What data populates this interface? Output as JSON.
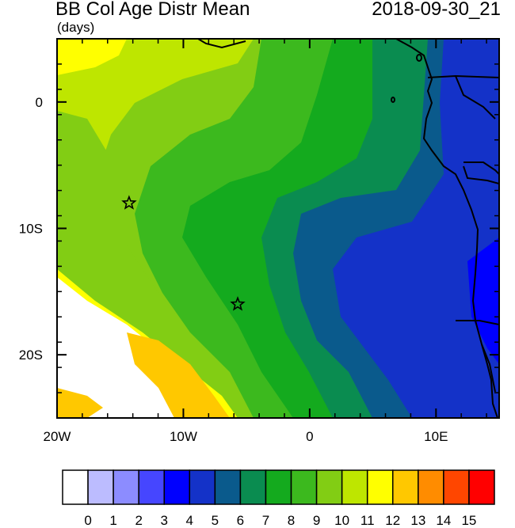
{
  "title": "BB Col Age Distr Mean",
  "units": "(days)",
  "datetime": "2018-09-30_21",
  "map": {
    "lon_range": [
      -20,
      15
    ],
    "lat_range": [
      -25,
      5
    ],
    "x_ticks": [
      {
        "value": -20,
        "label": "20W"
      },
      {
        "value": -10,
        "label": "10W"
      },
      {
        "value": 0,
        "label": "0"
      },
      {
        "value": 10,
        "label": "10E"
      }
    ],
    "y_ticks": [
      {
        "value": 0,
        "label": "0"
      },
      {
        "value": -10,
        "label": "10S"
      },
      {
        "value": -20,
        "label": "20S"
      }
    ],
    "markers": [
      {
        "name": "star-marker",
        "lon": -14.3,
        "lat": -8.0
      },
      {
        "name": "star-marker",
        "lon": -5.7,
        "lat": -16.0
      }
    ]
  },
  "colorbar": {
    "labels": [
      "0",
      "1",
      "2",
      "3",
      "4",
      "5",
      "6",
      "7",
      "8",
      "9",
      "10",
      "11",
      "12",
      "13",
      "14",
      "15"
    ],
    "colors": [
      "#ffffff",
      "#bcbcff",
      "#8c8cff",
      "#4646ff",
      "#0000ff",
      "#1432c8",
      "#0a5a8c",
      "#0a8c50",
      "#14aa1e",
      "#3cb91e",
      "#82cd14",
      "#bee600",
      "#ffff00",
      "#ffc800",
      "#ff8c00",
      "#ff4600",
      "#ff0000"
    ]
  }
}
